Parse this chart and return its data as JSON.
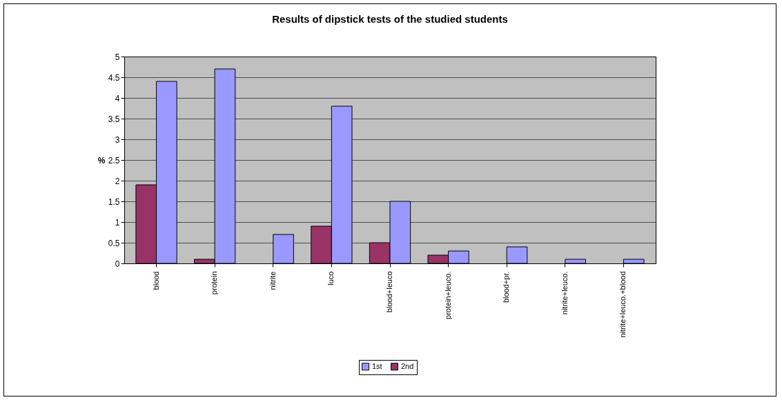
{
  "chart_data": {
    "type": "bar",
    "title": "Results of dipstick tests of the studied students",
    "ylabel": "%",
    "categories": [
      "blood",
      "protein",
      "nitrite",
      "luco",
      "blood+leuco",
      "protein+leuco.",
      "blood+pr.",
      "nitrite+leuco.",
      "nitrite+leuco.+blood"
    ],
    "series": [
      {
        "name": "2nd",
        "color": "#993366",
        "values": [
          1.9,
          0.1,
          0,
          0.9,
          0.5,
          0.2,
          0,
          0,
          0
        ]
      },
      {
        "name": "1st",
        "color": "#9999ff",
        "values": [
          4.4,
          4.7,
          0.7,
          3.8,
          1.5,
          0.3,
          0.4,
          0.1,
          0.1
        ]
      }
    ],
    "ylim": [
      0,
      5
    ],
    "yticks": [
      0,
      0.5,
      1,
      1.5,
      2,
      2.5,
      3,
      3.5,
      4,
      4.5,
      5
    ],
    "grid": "y",
    "legend": "bottom"
  }
}
